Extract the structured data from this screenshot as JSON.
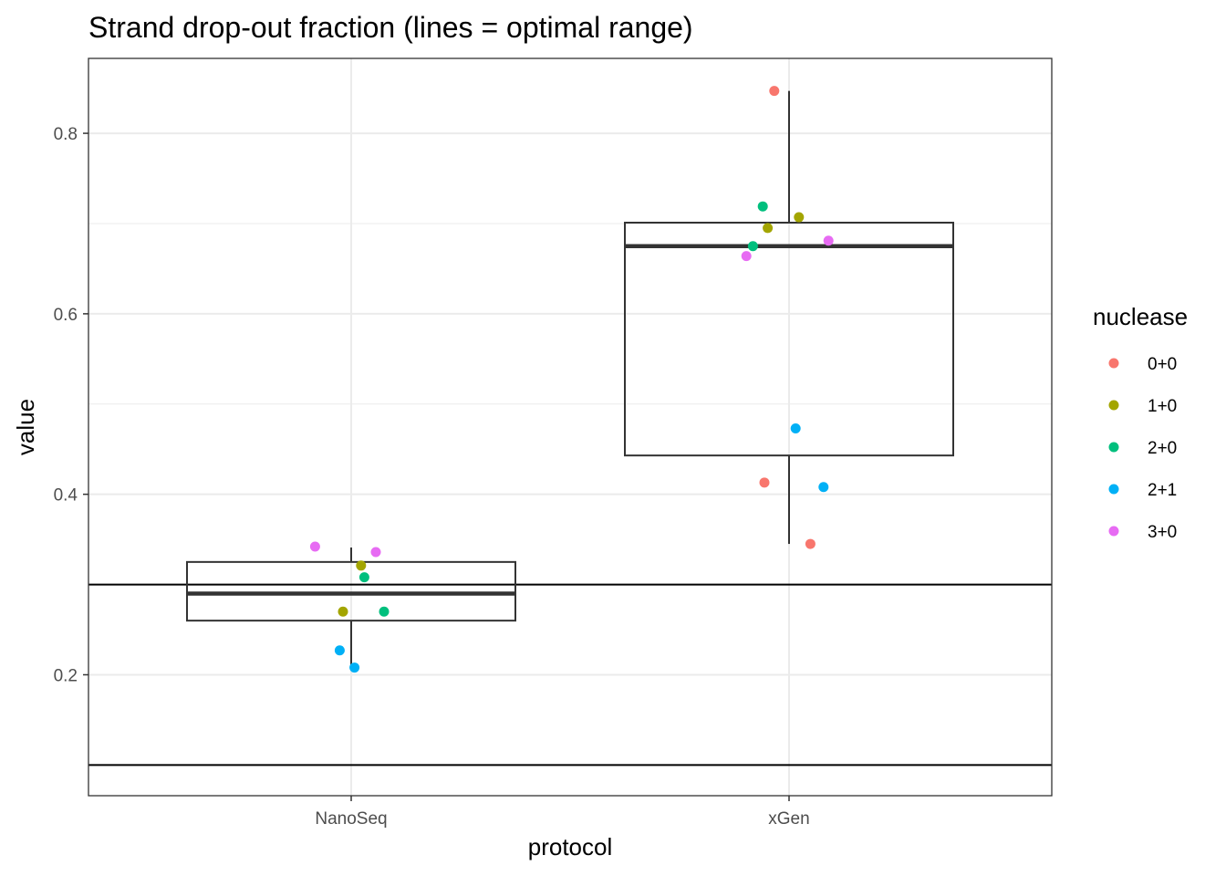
{
  "chart_data": {
    "type": "box",
    "title": "Strand drop-out fraction (lines = optimal range)",
    "xlabel": "protocol",
    "ylabel": "value",
    "categories": [
      "NanoSeq",
      "xGen"
    ],
    "ylim": [
      0.066,
      0.883
    ],
    "yticks": [
      0.2,
      0.4,
      0.6,
      0.8
    ],
    "ytick_labels": [
      "0.2",
      "0.4",
      "0.6",
      "0.8"
    ],
    "grid": true,
    "legend": {
      "title": "nuclease",
      "placement": "right",
      "entries": [
        {
          "label": "0+0",
          "color": "#F8766D"
        },
        {
          "label": "1+0",
          "color": "#A3A500"
        },
        {
          "label": "2+0",
          "color": "#00BF7D"
        },
        {
          "label": "2+1",
          "color": "#00B0F6"
        },
        {
          "label": "3+0",
          "color": "#E76BF3"
        }
      ]
    },
    "reference_lines": [
      0.1,
      0.3
    ],
    "boxes": [
      {
        "category": "NanoSeq",
        "whisker_low": 0.207,
        "q1": 0.26,
        "median": 0.29,
        "q3": 0.325,
        "whisker_high": 0.341
      },
      {
        "category": "xGen",
        "whisker_low": 0.345,
        "q1": 0.443,
        "median": 0.675,
        "q3": 0.701,
        "whisker_high": 0.847
      }
    ],
    "points": [
      {
        "category": "NanoSeq",
        "nuclease": "3+0",
        "y": 0.342,
        "jitter": -0.22
      },
      {
        "category": "NanoSeq",
        "nuclease": "3+0",
        "y": 0.336,
        "jitter": 0.15
      },
      {
        "category": "NanoSeq",
        "nuclease": "1+0",
        "y": 0.321,
        "jitter": 0.06
      },
      {
        "category": "NanoSeq",
        "nuclease": "2+0",
        "y": 0.308,
        "jitter": 0.08
      },
      {
        "category": "NanoSeq",
        "nuclease": "1+0",
        "y": 0.27,
        "jitter": -0.05
      },
      {
        "category": "NanoSeq",
        "nuclease": "2+0",
        "y": 0.27,
        "jitter": 0.2
      },
      {
        "category": "NanoSeq",
        "nuclease": "2+1",
        "y": 0.227,
        "jitter": -0.07
      },
      {
        "category": "NanoSeq",
        "nuclease": "2+1",
        "y": 0.208,
        "jitter": 0.02
      },
      {
        "category": "xGen",
        "nuclease": "0+0",
        "y": 0.847,
        "jitter": -0.09
      },
      {
        "category": "xGen",
        "nuclease": "2+0",
        "y": 0.719,
        "jitter": -0.16
      },
      {
        "category": "xGen",
        "nuclease": "1+0",
        "y": 0.707,
        "jitter": 0.06
      },
      {
        "category": "xGen",
        "nuclease": "1+0",
        "y": 0.695,
        "jitter": -0.13
      },
      {
        "category": "xGen",
        "nuclease": "3+0",
        "y": 0.681,
        "jitter": 0.24
      },
      {
        "category": "xGen",
        "nuclease": "2+0",
        "y": 0.675,
        "jitter": -0.22
      },
      {
        "category": "xGen",
        "nuclease": "3+0",
        "y": 0.664,
        "jitter": -0.26
      },
      {
        "category": "xGen",
        "nuclease": "2+1",
        "y": 0.473,
        "jitter": 0.04
      },
      {
        "category": "xGen",
        "nuclease": "0+0",
        "y": 0.413,
        "jitter": -0.15
      },
      {
        "category": "xGen",
        "nuclease": "2+1",
        "y": 0.408,
        "jitter": 0.21
      },
      {
        "category": "xGen",
        "nuclease": "0+0",
        "y": 0.345,
        "jitter": 0.13
      }
    ]
  }
}
